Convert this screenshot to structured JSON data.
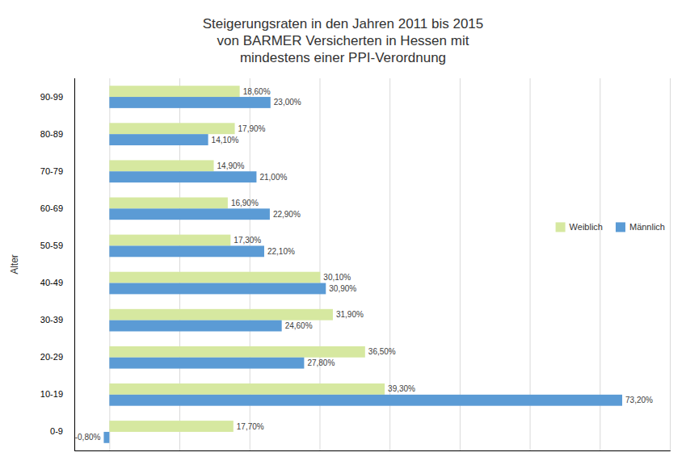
{
  "chart_data": {
    "type": "bar",
    "orientation": "horizontal",
    "title": "Steigerungsraten in den Jahren 2011 bis 2015\nvon BARMER Versicherten in Hessen mit\nmindestens einer PPI-Verordnung",
    "ylabel": "Alter",
    "categories": [
      "0-9",
      "10-19",
      "20-29",
      "30-39",
      "40-49",
      "50-59",
      "60-69",
      "70-79",
      "80-89",
      "90-99"
    ],
    "series": [
      {
        "name": "Weiblich",
        "color": "#d6e8a0",
        "values": [
          17.7,
          39.3,
          36.5,
          31.9,
          30.1,
          17.3,
          16.9,
          14.9,
          17.9,
          18.6
        ],
        "value_labels": [
          "17,70%",
          "39,30%",
          "36,50%",
          "31,90%",
          "30,10%",
          "17,30%",
          "16,90%",
          "14,90%",
          "17,90%",
          "18,60%"
        ]
      },
      {
        "name": "Männlich",
        "color": "#5b9bd5",
        "values": [
          -0.8,
          73.2,
          27.8,
          24.6,
          30.9,
          22.1,
          22.9,
          21.0,
          14.1,
          23.0
        ],
        "value_labels": [
          "-0,80%",
          "73,20%",
          "27,80%",
          "24,60%",
          "30,90%",
          "22,10%",
          "22,90%",
          "21,00%",
          "14,10%",
          "23,00%"
        ]
      }
    ],
    "xlim": [
      -5,
      80
    ],
    "xticks": [
      0,
      10,
      20,
      30,
      40,
      50,
      60,
      70,
      80
    ],
    "grid": true,
    "legend": "right",
    "data_labels": true,
    "tick_labels": "y"
  }
}
